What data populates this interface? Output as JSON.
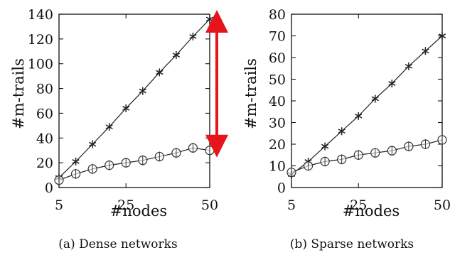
{
  "chart_data": [
    {
      "type": "line",
      "caption": "(a) Dense networks",
      "xlabel": "#nodes",
      "ylabel": "#m-trails",
      "xlim": [
        5,
        50
      ],
      "ylim": [
        0,
        140
      ],
      "x_ticks": [
        "5",
        "25",
        "50"
      ],
      "y_ticks": [
        "0",
        "20",
        "40",
        "60",
        "80",
        "100",
        "120",
        "140"
      ],
      "series": [
        {
          "marker": "star",
          "x": [
            5,
            10,
            15,
            20,
            25,
            30,
            35,
            40,
            45,
            50
          ],
          "y": [
            8,
            21,
            35,
            49,
            64,
            78,
            93,
            107,
            122,
            136
          ]
        },
        {
          "marker": "circle",
          "x": [
            5,
            10,
            15,
            20,
            25,
            30,
            35,
            40,
            45,
            50
          ],
          "y": [
            6,
            11,
            15,
            18,
            20,
            22,
            25,
            28,
            32,
            30
          ]
        }
      ],
      "annotation": {
        "type": "double-arrow",
        "color": "#e8141b",
        "from_y": 136,
        "to_y": 30,
        "x": 50
      }
    },
    {
      "type": "line",
      "caption": "(b) Sparse networks",
      "xlabel": "#nodes",
      "ylabel": "#m-trails",
      "xlim": [
        5,
        50
      ],
      "ylim": [
        0,
        80
      ],
      "x_ticks": [
        "5",
        "25",
        "50"
      ],
      "y_ticks": [
        "0",
        "10",
        "20",
        "30",
        "40",
        "50",
        "60",
        "70",
        "80"
      ],
      "series": [
        {
          "marker": "star",
          "x": [
            5,
            10,
            15,
            20,
            25,
            30,
            35,
            40,
            45,
            50
          ],
          "y": [
            6,
            12,
            19,
            26,
            33,
            41,
            48,
            56,
            63,
            70
          ]
        },
        {
          "marker": "circle",
          "x": [
            5,
            10,
            15,
            20,
            25,
            30,
            35,
            40,
            45,
            50
          ],
          "y": [
            7,
            10,
            12,
            13,
            15,
            16,
            17,
            19,
            20,
            22
          ]
        }
      ]
    }
  ]
}
